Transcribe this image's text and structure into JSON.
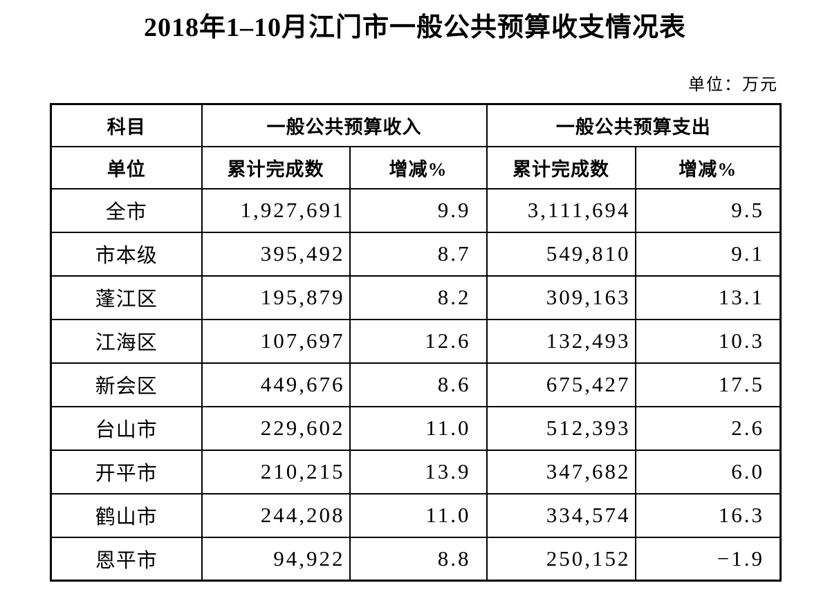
{
  "page": {
    "title": "2018年1–10月江门市一般公共预算收支情况表",
    "unit_note": "单位：万元"
  },
  "table": {
    "header": {
      "subject_label": "科目",
      "unit_label": "单位",
      "revenue_group": "一般公共预算收入",
      "expenditure_group": "一般公共预算支出",
      "revenue_cumulative_label": "累计完成数",
      "revenue_change_label": "增减%",
      "expenditure_cumulative_label": "累计完成数",
      "expenditure_change_label": "增减%"
    },
    "rows": [
      {
        "name": "全市",
        "revenue": "1,927,691",
        "revenue_change": "9.9",
        "expenditure": "3,111,694",
        "expenditure_change": "9.5"
      },
      {
        "name": "市本级",
        "revenue": "395,492",
        "revenue_change": "8.7",
        "expenditure": "549,810",
        "expenditure_change": "9.1"
      },
      {
        "name": "蓬江区",
        "revenue": "195,879",
        "revenue_change": "8.2",
        "expenditure": "309,163",
        "expenditure_change": "13.1"
      },
      {
        "name": "江海区",
        "revenue": "107,697",
        "revenue_change": "12.6",
        "expenditure": "132,493",
        "expenditure_change": "10.3"
      },
      {
        "name": "新会区",
        "revenue": "449,676",
        "revenue_change": "8.6",
        "expenditure": "675,427",
        "expenditure_change": "17.5"
      },
      {
        "name": "台山市",
        "revenue": "229,602",
        "revenue_change": "11.0",
        "expenditure": "512,393",
        "expenditure_change": "2.6"
      },
      {
        "name": "开平市",
        "revenue": "210,215",
        "revenue_change": "13.9",
        "expenditure": "347,682",
        "expenditure_change": "6.0"
      },
      {
        "name": "鹤山市",
        "revenue": "244,208",
        "revenue_change": "11.0",
        "expenditure": "334,574",
        "expenditure_change": "16.3"
      },
      {
        "name": "恩平市",
        "revenue": "94,922",
        "revenue_change": "8.8",
        "expenditure": "250,152",
        "expenditure_change": "−1.9"
      }
    ]
  }
}
